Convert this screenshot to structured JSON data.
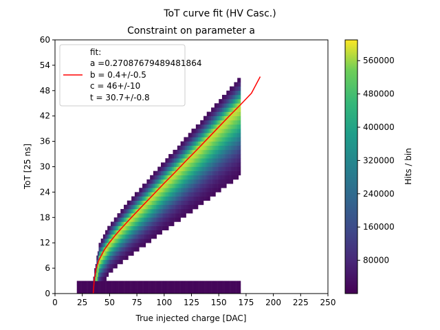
{
  "chart_data": {
    "type": "heatmap",
    "suptitle": "ToT curve fit (HV Casc.)",
    "title": "Constraint on parameter a",
    "xlabel": "True injected charge [DAC]",
    "ylabel": "ToT [25 ns]",
    "xlim": [
      0,
      250
    ],
    "ylim": [
      0,
      60
    ],
    "xticks": [
      "0",
      "25",
      "50",
      "75",
      "100",
      "125",
      "150",
      "175",
      "200",
      "225",
      "250"
    ],
    "yticks": [
      "0",
      "6",
      "12",
      "18",
      "24",
      "30",
      "36",
      "42",
      "48",
      "54",
      "60"
    ],
    "colorbar": {
      "label": "Hits / bin",
      "ticks": [
        "80000",
        "160000",
        "240000",
        "320000",
        "400000",
        "480000",
        "560000"
      ],
      "range": [
        0,
        610000
      ],
      "colormap": "viridis"
    },
    "legend": {
      "placement": "top-left",
      "title": "fit:",
      "entries": [
        "a =0.27087679489481864",
        "b = 0.4+/-0.5",
        "c = 46+/-10",
        "t = 30.7+/-0.8"
      ],
      "line_color": "#ff0000"
    },
    "fit_curve": {
      "color": "#ff0000",
      "x": [
        35,
        36,
        38,
        40,
        45,
        50,
        55,
        60,
        70,
        80,
        90,
        100,
        110,
        120,
        130,
        140,
        150,
        160,
        170,
        180,
        188
      ],
      "y": [
        0,
        3.5,
        6.2,
        7.8,
        10.3,
        12.1,
        13.7,
        15.2,
        18.0,
        20.7,
        23.4,
        26.1,
        28.7,
        31.4,
        34.0,
        36.7,
        39.4,
        42.1,
        44.7,
        47.4,
        51.3
      ]
    },
    "histogram_band": {
      "description_x": [
        35,
        40,
        50,
        60,
        70,
        80,
        90,
        100,
        110,
        120,
        130,
        140,
        150,
        160,
        170
      ],
      "ridge_y": [
        0,
        7.8,
        12.1,
        15.2,
        18.0,
        20.7,
        23.4,
        26.1,
        28.7,
        31.4,
        34.0,
        36.7,
        39.4,
        42.1,
        44.7
      ],
      "x_range": [
        20,
        170
      ],
      "low_tot_floor_y": [
        0,
        3
      ]
    }
  }
}
